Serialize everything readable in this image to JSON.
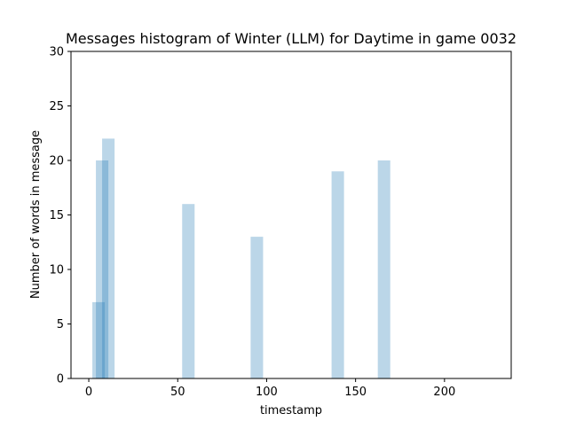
{
  "colors": {
    "bar": "#1f77b4",
    "axis": "#000000",
    "background": "#ffffff"
  },
  "chart_data": {
    "type": "bar",
    "title": "Messages histogram of Winter (LLM) for Daytime in game 0032",
    "xlabel": "timestamp",
    "ylabel": "Number of words in message",
    "xlim": [
      -10,
      237.5
    ],
    "ylim": [
      0,
      30
    ],
    "x_ticks": [
      0,
      50,
      100,
      150,
      200
    ],
    "y_ticks": [
      0,
      5,
      10,
      15,
      20,
      25,
      30
    ],
    "grid": false,
    "legend": "none",
    "bar_opacity": 0.3,
    "bars": [
      {
        "x": 5.5,
        "value": 7
      },
      {
        "x": 7.5,
        "value": 20
      },
      {
        "x": 11,
        "value": 22
      },
      {
        "x": 56,
        "value": 16
      },
      {
        "x": 94.5,
        "value": 13
      },
      {
        "x": 140,
        "value": 19
      },
      {
        "x": 166,
        "value": 20
      }
    ]
  }
}
